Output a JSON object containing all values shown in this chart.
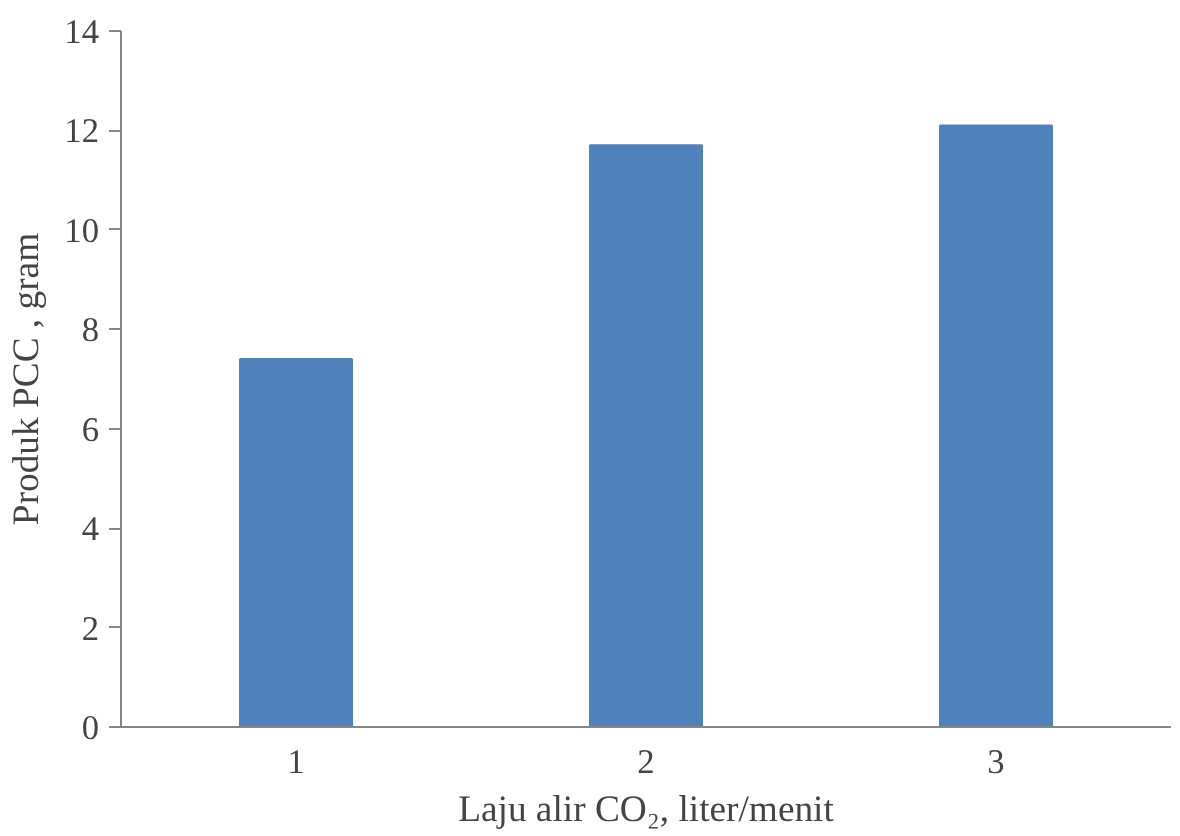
{
  "chart_data": {
    "type": "bar",
    "categories": [
      "1",
      "2",
      "3"
    ],
    "values": [
      7.4,
      11.7,
      12.1
    ],
    "color": "#4f81bd",
    "xlabel": "Laju alir CO₂, liter/menit",
    "ylabel": "Produk PCC , gram",
    "ylim": [
      0,
      14
    ],
    "yticks": [
      0,
      2,
      4,
      6,
      8,
      10,
      12,
      14
    ],
    "grid": false
  }
}
